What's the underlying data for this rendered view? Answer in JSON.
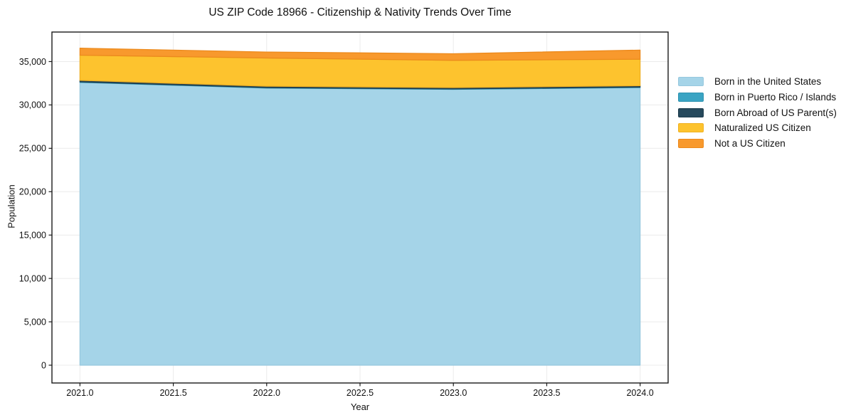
{
  "chart_data": {
    "type": "area",
    "stacked": true,
    "title": "US ZIP Code 18966 - Citizenship & Nativity Trends Over Time",
    "xlabel": "Year",
    "ylabel": "Population",
    "x": [
      2021,
      2022,
      2023,
      2024
    ],
    "series": [
      {
        "name": "Born in the United States",
        "color": "#a5d4e8",
        "edge": "#97c8de",
        "values": [
          32600,
          31950,
          31800,
          32000
        ]
      },
      {
        "name": "Born in Puerto Rico / Islands",
        "color": "#3aa4c3",
        "edge": "#2e93b1",
        "values": [
          60,
          50,
          50,
          60
        ]
      },
      {
        "name": "Born Abroad of US Parent(s)",
        "color": "#26495c",
        "edge": "#1e3c4c",
        "values": [
          180,
          160,
          150,
          160
        ]
      },
      {
        "name": "Naturalized US Citizen",
        "color": "#fdc32e",
        "edge": "#f0b122",
        "values": [
          2900,
          3250,
          3150,
          3050
        ]
      },
      {
        "name": "Not a US Citizen",
        "color": "#f8992d",
        "edge": "#ec8a1d",
        "values": [
          800,
          690,
          750,
          1050
        ]
      }
    ],
    "xtick_values": [
      2021,
      2021.5,
      2022,
      2022.5,
      2023,
      2023.5,
      2024
    ],
    "xtick_labels": [
      "2021.0",
      "2021.5",
      "2022.0",
      "2022.5",
      "2023.0",
      "2023.5",
      "2024.0"
    ],
    "ytick_values": [
      0,
      5000,
      10000,
      15000,
      20000,
      25000,
      30000,
      35000
    ],
    "ytick_labels": [
      "0",
      "5,000",
      "10,000",
      "15,000",
      "20,000",
      "25,000",
      "30,000",
      "35,000"
    ],
    "xlim": [
      2020.85,
      2024.15
    ],
    "ylim": [
      -2051,
      38404
    ],
    "grid": true,
    "legend_position": "right-outside"
  },
  "colors": {
    "grid": "#ebebeb",
    "axis": "#1a1a1a",
    "tick_text": "#111111",
    "background": "#ffffff"
  }
}
